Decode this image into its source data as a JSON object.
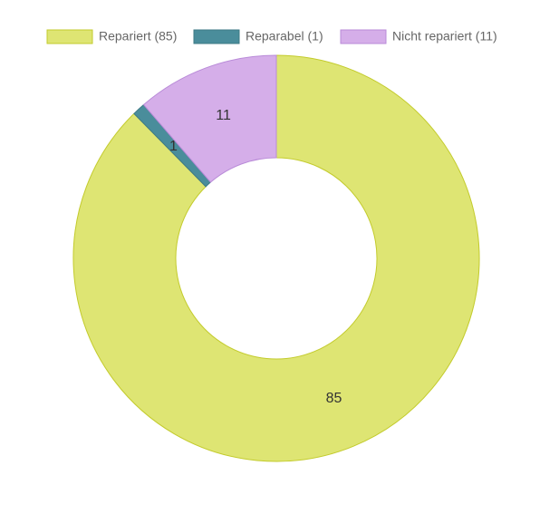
{
  "chart_data": {
    "type": "donut",
    "categories": [
      "Repariert (85)",
      "Reparabel (1)",
      "Nicht repariert (11)"
    ],
    "values": [
      85,
      1,
      11
    ],
    "colors": [
      "#dee573",
      "#4a8d9b",
      "#d5aee9"
    ],
    "borders": [
      "#c3cb2c",
      "#3d7a86",
      "#b98bd8"
    ],
    "legend": "top"
  }
}
